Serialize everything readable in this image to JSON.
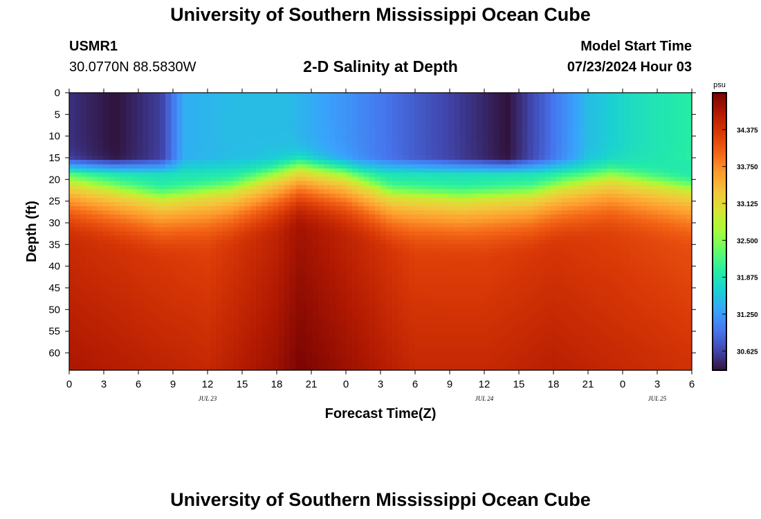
{
  "header": {
    "title": "University of Southern Mississippi Ocean Cube",
    "station_id": "USMR1",
    "coordinates": "30.0770N  88.5830W",
    "subtitle": "2-D Salinity at Depth",
    "model_start_label": "Model Start Time",
    "model_start_value": "07/23/2024 Hour 03"
  },
  "footer": {
    "title": "University of Southern Mississippi Ocean Cube"
  },
  "colors": {
    "colormap": [
      "#30123b",
      "#4145ab",
      "#4675ed",
      "#39a2fc",
      "#1bcfd4",
      "#24eca6",
      "#61fc6c",
      "#a4fc3b",
      "#d1e834",
      "#f3c63a",
      "#fe9b2d",
      "#f36315",
      "#d93806",
      "#b11901",
      "#7a0403"
    ]
  },
  "chart_data": {
    "type": "heatmap",
    "title": "2-D Salinity at Depth",
    "xlabel": "Forecast Time(Z)",
    "ylabel": "Depth (ft)",
    "x_tick_labels": [
      "0",
      "3",
      "6",
      "9",
      "12",
      "15",
      "18",
      "21",
      "0",
      "3",
      "6",
      "9",
      "12",
      "15",
      "18",
      "21",
      "0",
      "3",
      "6"
    ],
    "x_range_hours": [
      0,
      54
    ],
    "date_labels": [
      {
        "label": "JUL 23",
        "hour": 12
      },
      {
        "label": "JUL 24",
        "hour": 36
      },
      {
        "label": "JUL 25",
        "hour": 51
      }
    ],
    "y_tick_labels": [
      "0",
      "5",
      "10",
      "15",
      "20",
      "25",
      "30",
      "35",
      "40",
      "45",
      "50",
      "55",
      "60"
    ],
    "y_range_ft": [
      0,
      64
    ],
    "colorbar": {
      "unit": "psu",
      "min": 30.3,
      "max": 35.0,
      "tick_labels": [
        "34.375",
        "33.750",
        "33.125",
        "32.500",
        "31.875",
        "31.250",
        "30.625"
      ],
      "tick_values": [
        34.375,
        33.75,
        33.125,
        32.5,
        31.875,
        31.25,
        30.625
      ]
    },
    "surface_salinity_psu": [
      {
        "hour": 0,
        "value": 30.5
      },
      {
        "hour": 4,
        "value": 30.3
      },
      {
        "hour": 8,
        "value": 30.6
      },
      {
        "hour": 10,
        "value": 31.4
      },
      {
        "hour": 14,
        "value": 31.5
      },
      {
        "hour": 19,
        "value": 31.5
      },
      {
        "hour": 24,
        "value": 31.2
      },
      {
        "hour": 30,
        "value": 30.8
      },
      {
        "hour": 35,
        "value": 30.5
      },
      {
        "hour": 38,
        "value": 30.3
      },
      {
        "hour": 41,
        "value": 30.8
      },
      {
        "hour": 45,
        "value": 31.5
      },
      {
        "hour": 49,
        "value": 31.8
      },
      {
        "hour": 54,
        "value": 32.0
      }
    ],
    "halocline_depth_ft": [
      {
        "hour": 0,
        "value": 21
      },
      {
        "hour": 8,
        "value": 25
      },
      {
        "hour": 14,
        "value": 23
      },
      {
        "hour": 20,
        "value": 18
      },
      {
        "hour": 24,
        "value": 20
      },
      {
        "hour": 28,
        "value": 24
      },
      {
        "hour": 34,
        "value": 25
      },
      {
        "hour": 40,
        "value": 24
      },
      {
        "hour": 43,
        "value": 22
      },
      {
        "hour": 47,
        "value": 20
      },
      {
        "hour": 54,
        "value": 23
      }
    ],
    "bottom_salinity_psu": [
      {
        "hour": 0,
        "value": 34.7
      },
      {
        "hour": 6,
        "value": 34.6
      },
      {
        "hour": 12,
        "value": 34.5
      },
      {
        "hour": 18,
        "value": 34.8
      },
      {
        "hour": 20,
        "value": 35.0
      },
      {
        "hour": 24,
        "value": 34.8
      },
      {
        "hour": 30,
        "value": 34.5
      },
      {
        "hour": 36,
        "value": 34.5
      },
      {
        "hour": 42,
        "value": 34.6
      },
      {
        "hour": 48,
        "value": 34.5
      },
      {
        "hour": 54,
        "value": 34.4
      }
    ]
  }
}
